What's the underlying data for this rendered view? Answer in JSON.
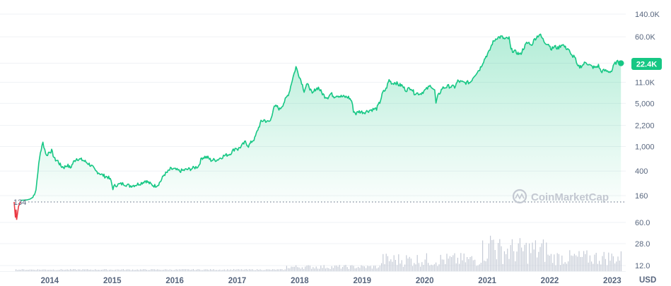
{
  "chart_data": {
    "type": "area",
    "title": "",
    "y_scale": "log",
    "currency_unit": "USD",
    "watermark": "CoinMarketCap",
    "price_tick_labels": [
      "140.0K",
      "60.0K",
      "22.4K",
      "11.0K",
      "5,000",
      "2,200",
      "1,000",
      "400",
      "160"
    ],
    "price_tick_values": [
      140000,
      60000,
      22400,
      11000,
      5000,
      2200,
      1000,
      400,
      160
    ],
    "volume_tick_labels": [
      "60.0",
      "28.0",
      "12.0"
    ],
    "x_tick_labels": [
      "2014",
      "2015",
      "2016",
      "2017",
      "2018",
      "2019",
      "2020",
      "2021",
      "2022",
      "2023"
    ],
    "x_tick_years": [
      2014,
      2015,
      2016,
      2017,
      2018,
      2019,
      2020,
      2021,
      2022,
      2023
    ],
    "x_range": [
      2013.45,
      2023.18
    ],
    "baseline_label": "134",
    "baseline_value": 134,
    "current_price_label": "22.4K",
    "current_price_value": 22400,
    "line_color": "#16c784",
    "negative_color": "#ea3943",
    "fill_color": "#16c784",
    "volume_bar_color": "#c5cbd6",
    "badge_color": "#16c784",
    "series": [
      {
        "values_below_baseline": [
          [
            2013.45,
            134
          ],
          [
            2013.47,
            85
          ],
          [
            2013.48,
            110
          ],
          [
            2013.49,
            78
          ],
          [
            2013.52,
            120
          ],
          [
            2013.55,
            134
          ]
        ],
        "values": [
          [
            2013.55,
            134
          ],
          [
            2013.6,
            135
          ],
          [
            2013.65,
            136
          ],
          [
            2013.7,
            140
          ],
          [
            2013.75,
            150
          ],
          [
            2013.8,
            200
          ],
          [
            2013.83,
            400
          ],
          [
            2013.87,
            800
          ],
          [
            2013.91,
            1150
          ],
          [
            2013.94,
            900
          ],
          [
            2013.97,
            700
          ],
          [
            2014.0,
            800
          ],
          [
            2014.05,
            850
          ],
          [
            2014.1,
            620
          ],
          [
            2014.15,
            580
          ],
          [
            2014.2,
            480
          ],
          [
            2014.25,
            460
          ],
          [
            2014.3,
            500
          ],
          [
            2014.35,
            450
          ],
          [
            2014.4,
            560
          ],
          [
            2014.45,
            640
          ],
          [
            2014.5,
            620
          ],
          [
            2014.55,
            600
          ],
          [
            2014.6,
            560
          ],
          [
            2014.65,
            520
          ],
          [
            2014.7,
            470
          ],
          [
            2014.75,
            400
          ],
          [
            2014.8,
            380
          ],
          [
            2014.85,
            350
          ],
          [
            2014.9,
            330
          ],
          [
            2014.95,
            320
          ],
          [
            2015.0,
            280
          ],
          [
            2015.03,
            210
          ],
          [
            2015.06,
            230
          ],
          [
            2015.1,
            240
          ],
          [
            2015.2,
            250
          ],
          [
            2015.3,
            230
          ],
          [
            2015.4,
            240
          ],
          [
            2015.5,
            260
          ],
          [
            2015.55,
            280
          ],
          [
            2015.6,
            260
          ],
          [
            2015.65,
            240
          ],
          [
            2015.7,
            230
          ],
          [
            2015.75,
            240
          ],
          [
            2015.8,
            280
          ],
          [
            2015.85,
            350
          ],
          [
            2015.9,
            380
          ],
          [
            2015.95,
            430
          ],
          [
            2016.0,
            430
          ],
          [
            2016.1,
            400
          ],
          [
            2016.2,
            420
          ],
          [
            2016.3,
            440
          ],
          [
            2016.4,
            480
          ],
          [
            2016.45,
            650
          ],
          [
            2016.5,
            680
          ],
          [
            2016.55,
            660
          ],
          [
            2016.6,
            600
          ],
          [
            2016.7,
            610
          ],
          [
            2016.8,
            700
          ],
          [
            2016.9,
            760
          ],
          [
            2017.0,
            960
          ],
          [
            2017.03,
            900
          ],
          [
            2017.1,
            1050
          ],
          [
            2017.15,
            1180
          ],
          [
            2017.2,
            1020
          ],
          [
            2017.25,
            1200
          ],
          [
            2017.3,
            1350
          ],
          [
            2017.35,
            1900
          ],
          [
            2017.4,
            2500
          ],
          [
            2017.45,
            2700
          ],
          [
            2017.5,
            2500
          ],
          [
            2017.55,
            2600
          ],
          [
            2017.6,
            4200
          ],
          [
            2017.65,
            4500
          ],
          [
            2017.7,
            4000
          ],
          [
            2017.75,
            4800
          ],
          [
            2017.8,
            6000
          ],
          [
            2017.85,
            7500
          ],
          [
            2017.9,
            12000
          ],
          [
            2017.96,
            19500
          ],
          [
            2018.0,
            15000
          ],
          [
            2018.05,
            11000
          ],
          [
            2018.09,
            8000
          ],
          [
            2018.13,
            10000
          ],
          [
            2018.17,
            9500
          ],
          [
            2018.22,
            7000
          ],
          [
            2018.27,
            8500
          ],
          [
            2018.32,
            9000
          ],
          [
            2018.37,
            7500
          ],
          [
            2018.42,
            6500
          ],
          [
            2018.47,
            6300
          ],
          [
            2018.52,
            7200
          ],
          [
            2018.57,
            6500
          ],
          [
            2018.62,
            6800
          ],
          [
            2018.67,
            6500
          ],
          [
            2018.72,
            6400
          ],
          [
            2018.8,
            6300
          ],
          [
            2018.85,
            5500
          ],
          [
            2018.88,
            3800
          ],
          [
            2018.92,
            3400
          ],
          [
            2018.96,
            3700
          ],
          [
            2019.05,
            3600
          ],
          [
            2019.15,
            3900
          ],
          [
            2019.25,
            4100
          ],
          [
            2019.3,
            5200
          ],
          [
            2019.35,
            7500
          ],
          [
            2019.4,
            8500
          ],
          [
            2019.45,
            12000
          ],
          [
            2019.5,
            10500
          ],
          [
            2019.55,
            11000
          ],
          [
            2019.6,
            10000
          ],
          [
            2019.65,
            9800
          ],
          [
            2019.72,
            8200
          ],
          [
            2019.8,
            9000
          ],
          [
            2019.85,
            7400
          ],
          [
            2019.95,
            7200
          ],
          [
            2020.05,
            8500
          ],
          [
            2020.12,
            9800
          ],
          [
            2020.18,
            8000
          ],
          [
            2020.2,
            5000
          ],
          [
            2020.23,
            6500
          ],
          [
            2020.3,
            8800
          ],
          [
            2020.4,
            9500
          ],
          [
            2020.5,
            9200
          ],
          [
            2020.55,
            11500
          ],
          [
            2020.65,
            10800
          ],
          [
            2020.75,
            11000
          ],
          [
            2020.8,
            13500
          ],
          [
            2020.85,
            15800
          ],
          [
            2020.9,
            18000
          ],
          [
            2020.95,
            23000
          ],
          [
            2021.0,
            29000
          ],
          [
            2021.05,
            34000
          ],
          [
            2021.1,
            47000
          ],
          [
            2021.17,
            58000
          ],
          [
            2021.25,
            60000
          ],
          [
            2021.3,
            55000
          ],
          [
            2021.37,
            57000
          ],
          [
            2021.4,
            37000
          ],
          [
            2021.45,
            35000
          ],
          [
            2021.5,
            33000
          ],
          [
            2021.55,
            31000
          ],
          [
            2021.6,
            39000
          ],
          [
            2021.65,
            47000
          ],
          [
            2021.7,
            48000
          ],
          [
            2021.72,
            43000
          ],
          [
            2021.78,
            55000
          ],
          [
            2021.82,
            61000
          ],
          [
            2021.86,
            66000
          ],
          [
            2021.9,
            57000
          ],
          [
            2021.94,
            49000
          ],
          [
            2022.0,
            46000
          ],
          [
            2022.05,
            38000
          ],
          [
            2022.1,
            42000
          ],
          [
            2022.15,
            39000
          ],
          [
            2022.22,
            46000
          ],
          [
            2022.27,
            40000
          ],
          [
            2022.32,
            38000
          ],
          [
            2022.36,
            30000
          ],
          [
            2022.42,
            29000
          ],
          [
            2022.46,
            20000
          ],
          [
            2022.5,
            19500
          ],
          [
            2022.55,
            21000
          ],
          [
            2022.6,
            23500
          ],
          [
            2022.65,
            21000
          ],
          [
            2022.7,
            19500
          ],
          [
            2022.75,
            19000
          ],
          [
            2022.8,
            20500
          ],
          [
            2022.84,
            16500
          ],
          [
            2022.9,
            17000
          ],
          [
            2022.96,
            16500
          ],
          [
            2023.01,
            16600
          ],
          [
            2023.05,
            21000
          ],
          [
            2023.08,
            23000
          ],
          [
            2023.12,
            23500
          ],
          [
            2023.16,
            22400
          ]
        ]
      }
    ]
  }
}
